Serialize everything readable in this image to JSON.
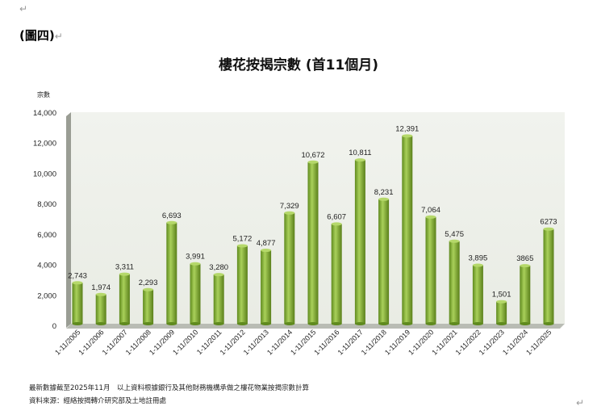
{
  "document": {
    "figure_label": "(圖四)",
    "paragraph_mark": "↵",
    "notes": [
      "最新數據截至2025年11月　以上資料根據銀行及其他財務機構承做之樓花物業按揭宗數計算",
      "資料來源：經絡按揭轉介研究部及土地註冊處"
    ]
  },
  "chart_data": {
    "type": "bar",
    "title": "樓花按揭宗數 (首11個月)",
    "ylabel": "宗數",
    "xlabel": "",
    "ylim": [
      0,
      14000
    ],
    "yticks": [
      "0",
      "2,000",
      "4,000",
      "6,000",
      "8,000",
      "10,000",
      "12,000",
      "14,000"
    ],
    "grid": false,
    "style": "3d-cylinder",
    "bar_color": "#8db53a",
    "wall_color": "#eef1ea",
    "categories": [
      "1-11/2005",
      "1-11/2006",
      "1-11/2007",
      "1-11/2008",
      "1-11/2009",
      "1-11/2010",
      "1-11/2011",
      "1-11/2012",
      "1-11/2013",
      "1-11/2014",
      "1-11/2015",
      "1-11/2016",
      "1-11/2017",
      "1-11/2018",
      "1-11/2019",
      "1-11/2020",
      "1-11/2021",
      "1-11/2022",
      "1-11/2023",
      "1-11/2024",
      "1-11/2025"
    ],
    "values": [
      2743,
      1974,
      3311,
      2293,
      6693,
      3991,
      3280,
      5172,
      4877,
      7329,
      10672,
      6607,
      10811,
      8231,
      12391,
      7064,
      5475,
      3895,
      1501,
      3865,
      6273
    ],
    "data_labels": [
      "2,743",
      "1,974",
      "3,311",
      "2,293",
      "6,693",
      "3,991",
      "3,280",
      "5,172",
      "4,877",
      "7,329",
      "10,672",
      "6,607",
      "10,811",
      "8,231",
      "12,391",
      "7,064",
      "5,475",
      "3,895",
      "1,501",
      "3865",
      "6273"
    ]
  }
}
